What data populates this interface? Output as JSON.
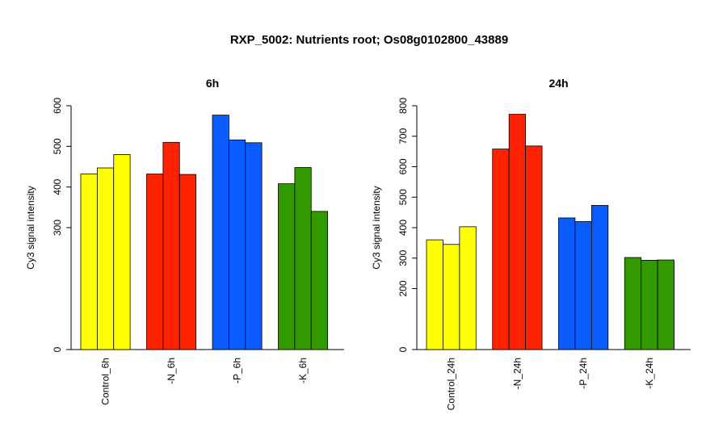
{
  "title": "RXP_5002: Nutrients root; Os08g0102800_43889",
  "colors": {
    "control": "#ffff00",
    "n": "#ff2200",
    "p": "#0a5cff",
    "k": "#339900"
  },
  "chart_data": [
    {
      "type": "bar",
      "title": "6h",
      "ylabel": "Cy3 signal intensity",
      "categories": [
        "Control_6h",
        "-N_6h",
        "-P_6h",
        "-K_6h"
      ],
      "ylim": [
        0,
        600
      ],
      "yticks": [
        0,
        300,
        400,
        500,
        600
      ],
      "groups": [
        {
          "category": "Control_6h",
          "color": "#ffff00",
          "values": [
            432,
            447,
            480
          ]
        },
        {
          "category": "-N_6h",
          "color": "#ff2200",
          "values": [
            432,
            510,
            431
          ]
        },
        {
          "category": "-P_6h",
          "color": "#0a5cff",
          "values": [
            577,
            516,
            509
          ]
        },
        {
          "category": "-K_6h",
          "color": "#339900",
          "values": [
            408,
            448,
            340
          ]
        }
      ]
    },
    {
      "type": "bar",
      "title": "24h",
      "ylabel": "Cy3 signal intensity",
      "categories": [
        "Control_24h",
        "-N_24h",
        "-P_24h",
        "-K_24h"
      ],
      "ylim": [
        0,
        800
      ],
      "yticks": [
        0,
        200,
        300,
        400,
        500,
        600,
        700,
        800
      ],
      "groups": [
        {
          "category": "Control_24h",
          "color": "#ffff00",
          "values": [
            360,
            345,
            403
          ]
        },
        {
          "category": "-N_24h",
          "color": "#ff2200",
          "values": [
            658,
            772,
            668
          ]
        },
        {
          "category": "-P_24h",
          "color": "#0a5cff",
          "values": [
            432,
            420,
            473
          ]
        },
        {
          "category": "-K_24h",
          "color": "#339900",
          "values": [
            302,
            293,
            294
          ]
        }
      ]
    }
  ]
}
